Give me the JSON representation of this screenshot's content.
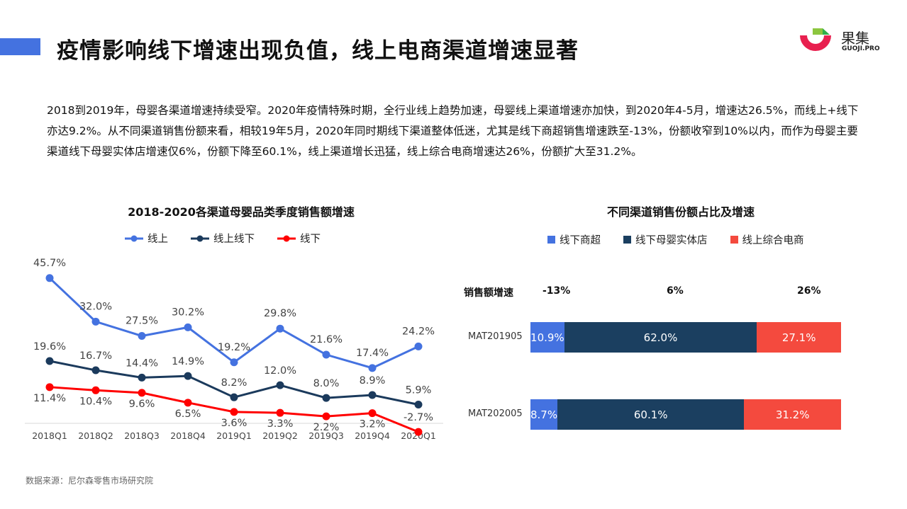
{
  "header": {
    "title": "疫情影响线下增速出现负值，线上电商渠道增速显著",
    "logo_name": "果集",
    "logo_sub": "GUOJI.PRO",
    "accent": "#4472e0"
  },
  "paragraph": "2018到2019年，母婴各渠道增速持续受窄。2020年疫情特殊时期，全行业线上趋势加速，母婴线上渠道增速亦加快，到2020年4-5月，增速达26.5%，而线上+线下亦达9.2%。从不同渠道销售份额来看，相较19年5月，2020年同时期线下渠道整体低迷，尤其是线下商超销售增速跌至-13%，份额收窄到10%以内，而作为母婴主要渠道线下母婴实体店增速仅6%，份额下降至60.1%，线上渠道增长迅猛，线上综合电商增速达26%，份额扩大至31.2%。",
  "source": "数据来源：尼尔森零售市场研究院",
  "chart_data": [
    {
      "type": "line",
      "title": "2018-2020各渠道母婴品类季度销售额增速",
      "categories": [
        "2018Q1",
        "2018Q2",
        "2018Q3",
        "2018Q4",
        "2019Q1",
        "2019Q2",
        "2019Q3",
        "2019Q4",
        "2020Q1"
      ],
      "series": [
        {
          "name": "线上",
          "color": "#4472e0",
          "values": [
            45.7,
            32.0,
            27.5,
            30.2,
            19.2,
            29.8,
            21.6,
            17.4,
            24.2
          ]
        },
        {
          "name": "线上线下",
          "color": "#1b3a5c",
          "values": [
            19.6,
            16.7,
            14.4,
            14.9,
            8.2,
            12.0,
            8.0,
            8.9,
            5.9
          ]
        },
        {
          "name": "线下",
          "color": "#ff0000",
          "values": [
            11.4,
            10.4,
            9.6,
            6.5,
            3.6,
            3.3,
            2.2,
            3.2,
            -2.7
          ]
        }
      ],
      "unit": "%",
      "legend": "top"
    },
    {
      "type": "bar",
      "stacked": true,
      "orientation": "horizontal",
      "title": "不同渠道销售份额占比及增速",
      "categories": [
        "MAT201905",
        "MAT202005"
      ],
      "series": [
        {
          "name": "线下商超",
          "color": "#4472e0",
          "values": [
            10.9,
            8.7
          ],
          "growth": "-13%"
        },
        {
          "name": "线下母婴实体店",
          "color": "#1b3f60",
          "values": [
            62.0,
            60.1
          ],
          "growth": "6%"
        },
        {
          "name": "线上综合电商",
          "color": "#f44a3e",
          "values": [
            27.1,
            31.2
          ],
          "growth": "26%"
        }
      ],
      "growth_label": "销售额增速",
      "unit": "%",
      "legend": "top"
    }
  ]
}
